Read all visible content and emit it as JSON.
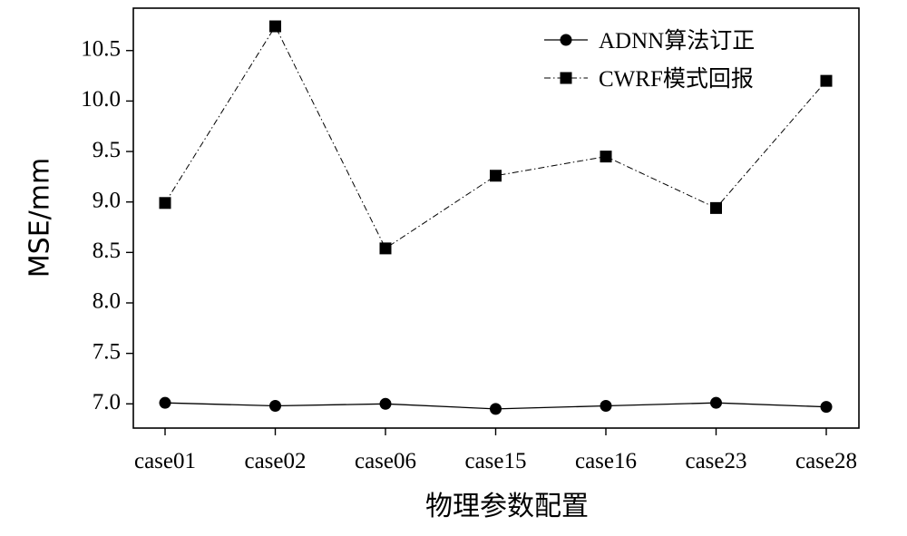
{
  "chart_data": {
    "type": "line",
    "title": "",
    "xlabel": "物理参数配置",
    "ylabel": "MSE/mm",
    "categories": [
      "case01",
      "case02",
      "case06",
      "case15",
      "case16",
      "case23",
      "case28"
    ],
    "ylim": [
      6.76,
      10.92
    ],
    "yticks": [
      7.0,
      7.5,
      8.0,
      8.5,
      9.0,
      9.5,
      10.0,
      10.5
    ],
    "ytick_labels": [
      "7.0",
      "7.5",
      "8.0",
      "8.5",
      "9.0",
      "9.5",
      "10.0",
      "10.5"
    ],
    "grid": false,
    "legend_position": "top-right",
    "series": [
      {
        "name": "ADNN算法订正",
        "marker": "circle",
        "line_style": "solid",
        "color": "#000000",
        "values": [
          7.01,
          6.98,
          7.0,
          6.95,
          6.98,
          7.01,
          6.97
        ]
      },
      {
        "name": "CWRF模式回报",
        "marker": "square",
        "line_style": "dashdot",
        "color": "#000000",
        "values": [
          8.99,
          10.74,
          8.54,
          9.26,
          9.45,
          8.94,
          10.2
        ]
      }
    ]
  }
}
